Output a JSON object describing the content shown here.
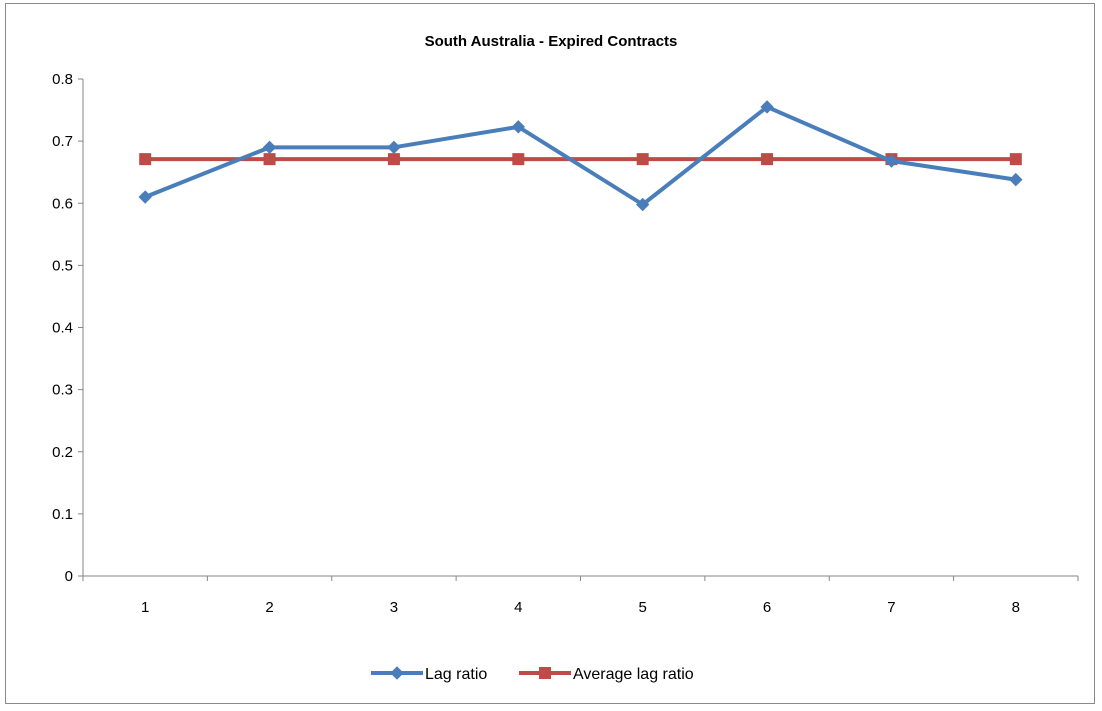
{
  "chart_data": {
    "type": "line",
    "title": "South Australia - Expired Contracts",
    "xlabel": "",
    "ylabel": "",
    "categories": [
      "1",
      "2",
      "3",
      "4",
      "5",
      "6",
      "7",
      "8"
    ],
    "ylim": [
      0,
      0.8
    ],
    "yticks": [
      "0",
      "0.1",
      "0.2",
      "0.3",
      "0.4",
      "0.5",
      "0.6",
      "0.7",
      "0.8"
    ],
    "grid": false,
    "legend_position": "bottom",
    "series": [
      {
        "name": "Lag ratio",
        "values": [
          0.61,
          0.69,
          0.69,
          0.723,
          0.598,
          0.755,
          0.668,
          0.638
        ],
        "color": "#4a7ebb",
        "marker": "diamond"
      },
      {
        "name": "Average lag ratio",
        "values": [
          0.671,
          0.671,
          0.671,
          0.671,
          0.671,
          0.671,
          0.671,
          0.671
        ],
        "color": "#be4b48",
        "marker": "square"
      }
    ]
  }
}
